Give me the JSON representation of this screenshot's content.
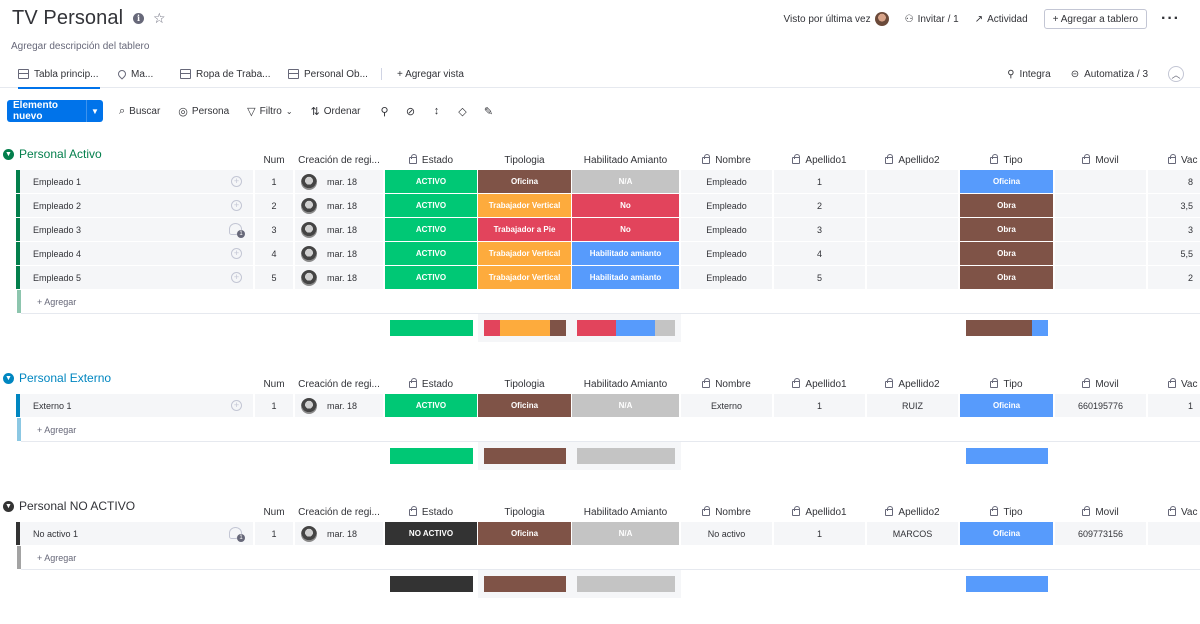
{
  "board": {
    "title": "TV Personal",
    "description": "Agregar descripción del tablero",
    "header_actions": {
      "last_seen": "Visto por última vez",
      "invite": "Invitar / 1",
      "activity": "Actividad",
      "add_to_board": "+ Agregar a tablero"
    }
  },
  "tabs": [
    {
      "label": "Tabla princip..."
    },
    {
      "label": "Ma..."
    },
    {
      "label": "Ropa de Traba..."
    },
    {
      "label": "Personal Ob..."
    }
  ],
  "add_view": "+ Agregar vista",
  "integrate": "Integra",
  "automate": "Automatiza / 3",
  "toolbar": {
    "new_item": "Elemento nuevo",
    "search": "Buscar",
    "person": "Persona",
    "filter": "Filtro",
    "sort": "Ordenar"
  },
  "columns": {
    "num": "Num",
    "created": "Creación de regi...",
    "estado": "Estado",
    "tipologia": "Tipologia",
    "amianto": "Habilitado Amianto",
    "nombre": "Nombre",
    "apellido1": "Apellido1",
    "apellido2": "Apellido2",
    "tipo": "Tipo",
    "movil": "Movil",
    "vac": "Vac"
  },
  "add_row_label": "+ Agregar",
  "colors": {
    "green": "#00c875",
    "blue": "#0086c0",
    "dark": "#333333",
    "orange": "#fdab3d",
    "brown": "#7f5347",
    "red": "#e2445c",
    "sky": "#579bfc",
    "grey": "#c4c4c4"
  },
  "groups": [
    {
      "title": "Personal Activo",
      "color": "#037f4c",
      "title_color": "#037f4c",
      "rows": [
        {
          "name": "Empleado 1",
          "icon": "add",
          "num": "1",
          "date": "mar. 18",
          "estado": "ACTIVO",
          "estado_color": "#00c875",
          "tipologia": "Oficina",
          "tipologia_color": "#7f5347",
          "amianto": "N/A",
          "amianto_color": "#c4c4c4",
          "nombre": "Empleado",
          "apellido1": "1",
          "apellido2": "",
          "tipo": "Oficina",
          "tipo_color": "#579bfc",
          "movil": "",
          "vac": "8"
        },
        {
          "name": "Empleado 2",
          "icon": "add",
          "num": "2",
          "date": "mar. 18",
          "estado": "ACTIVO",
          "estado_color": "#00c875",
          "tipologia": "Trabajador Vertical",
          "tipologia_color": "#fdab3d",
          "amianto": "No",
          "amianto_color": "#e2445c",
          "nombre": "Empleado",
          "apellido1": "2",
          "apellido2": "",
          "tipo": "Obra",
          "tipo_color": "#7f5347",
          "movil": "",
          "vac": "3,5"
        },
        {
          "name": "Empleado 3",
          "icon": "chat",
          "num": "3",
          "date": "mar. 18",
          "estado": "ACTIVO",
          "estado_color": "#00c875",
          "tipologia": "Trabajador a Pie",
          "tipologia_color": "#e2445c",
          "amianto": "No",
          "amianto_color": "#e2445c",
          "nombre": "Empleado",
          "apellido1": "3",
          "apellido2": "",
          "tipo": "Obra",
          "tipo_color": "#7f5347",
          "movil": "",
          "vac": "3"
        },
        {
          "name": "Empleado 4",
          "icon": "add",
          "num": "4",
          "date": "mar. 18",
          "estado": "ACTIVO",
          "estado_color": "#00c875",
          "tipologia": "Trabajador Vertical",
          "tipologia_color": "#fdab3d",
          "amianto": "Habilitado amianto",
          "amianto_color": "#579bfc",
          "nombre": "Empleado",
          "apellido1": "4",
          "apellido2": "",
          "tipo": "Obra",
          "tipo_color": "#7f5347",
          "movil": "",
          "vac": "5,5"
        },
        {
          "name": "Empleado 5",
          "icon": "add",
          "num": "5",
          "date": "mar. 18",
          "estado": "ACTIVO",
          "estado_color": "#00c875",
          "tipologia": "Trabajador Vertical",
          "tipologia_color": "#fdab3d",
          "amianto": "Habilitado amianto",
          "amianto_color": "#579bfc",
          "nombre": "Empleado",
          "apellido1": "5",
          "apellido2": "",
          "tipo": "Obra",
          "tipo_color": "#7f5347",
          "movil": "",
          "vac": "2"
        }
      ],
      "summary": {
        "estado": [
          {
            "color": "#00c875",
            "share": 1
          }
        ],
        "tipologia": [
          {
            "color": "#e2445c",
            "share": 0.2
          },
          {
            "color": "#fdab3d",
            "share": 0.6
          },
          {
            "color": "#7f5347",
            "share": 0.2
          }
        ],
        "amianto": [
          {
            "color": "#e2445c",
            "share": 0.4
          },
          {
            "color": "#579bfc",
            "share": 0.4
          },
          {
            "color": "#c4c4c4",
            "share": 0.2
          }
        ],
        "tipo": [
          {
            "color": "#7f5347",
            "share": 0.8
          },
          {
            "color": "#579bfc",
            "share": 0.2
          }
        ]
      }
    },
    {
      "title": "Personal Externo",
      "color": "#0086c0",
      "title_color": "#0086c0",
      "rows": [
        {
          "name": "Externo 1",
          "icon": "add",
          "num": "1",
          "date": "mar. 18",
          "estado": "ACTIVO",
          "estado_color": "#00c875",
          "tipologia": "Oficina",
          "tipologia_color": "#7f5347",
          "amianto": "N/A",
          "amianto_color": "#c4c4c4",
          "nombre": "Externo",
          "apellido1": "1",
          "apellido2": "RUIZ",
          "tipo": "Oficina",
          "tipo_color": "#579bfc",
          "movil": "660195776",
          "vac": "1"
        }
      ],
      "summary": {
        "estado": [
          {
            "color": "#00c875",
            "share": 1
          }
        ],
        "tipologia": [
          {
            "color": "#7f5347",
            "share": 1
          }
        ],
        "amianto": [
          {
            "color": "#c4c4c4",
            "share": 1
          }
        ],
        "tipo": [
          {
            "color": "#579bfc",
            "share": 1
          }
        ]
      }
    },
    {
      "title": "Personal NO ACTIVO",
      "color": "#333333",
      "title_color": "#323338",
      "rows": [
        {
          "name": "No activo 1",
          "icon": "chat",
          "num": "1",
          "date": "mar. 18",
          "estado": "NO ACTIVO",
          "estado_color": "#333333",
          "tipologia": "Oficina",
          "tipologia_color": "#7f5347",
          "amianto": "N/A",
          "amianto_color": "#c4c4c4",
          "nombre": "No activo",
          "apellido1": "1",
          "apellido2": "MARCOS",
          "tipo": "Oficina",
          "tipo_color": "#579bfc",
          "movil": "609773156",
          "vac": ""
        }
      ],
      "summary": {
        "estado": [
          {
            "color": "#333333",
            "share": 1
          }
        ],
        "tipologia": [
          {
            "color": "#7f5347",
            "share": 1
          }
        ],
        "amianto": [
          {
            "color": "#c4c4c4",
            "share": 1
          }
        ],
        "tipo": [
          {
            "color": "#579bfc",
            "share": 1
          }
        ]
      }
    }
  ]
}
